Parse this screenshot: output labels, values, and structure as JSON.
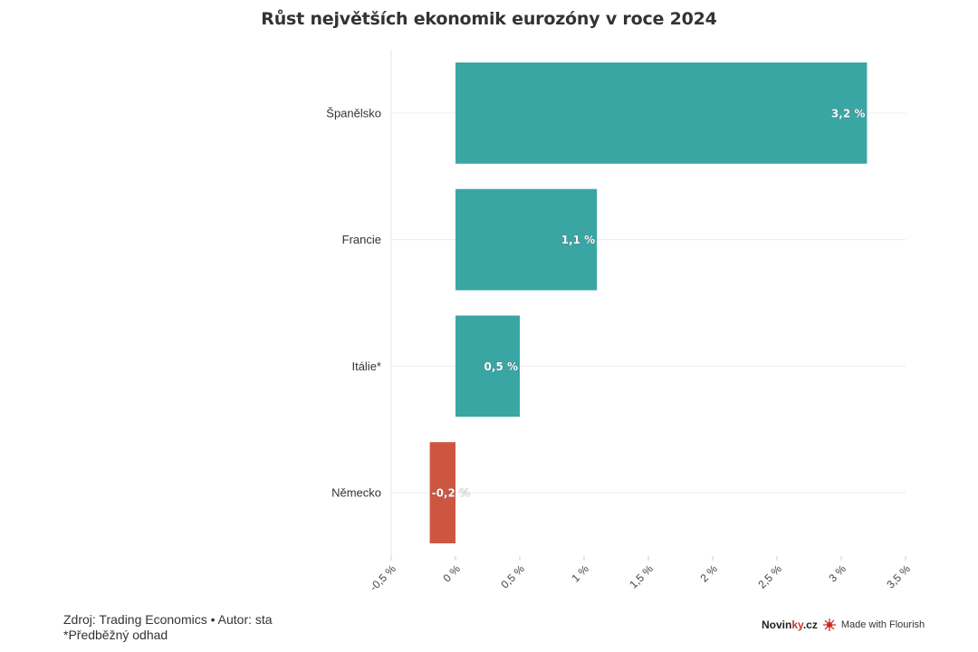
{
  "chart_data": {
    "type": "bar",
    "orientation": "horizontal",
    "title": "Růst největších ekonomik eurozóny v roce 2024",
    "categories": [
      "Španělsko",
      "Francie",
      "Itálie*",
      "Německo"
    ],
    "values": [
      3.2,
      1.1,
      0.5,
      -0.2
    ],
    "value_labels": [
      "3,2 %",
      "1,1 %",
      "0,5 %",
      "-0,2 %"
    ],
    "xlim": [
      -0.5,
      3.5
    ],
    "xticks": [
      -0.5,
      0,
      0.5,
      1,
      1.5,
      2,
      2.5,
      3,
      3.5
    ],
    "xtick_labels": [
      "-0,5 %",
      "0 %",
      "0,5 %",
      "1 %",
      "1,5 %",
      "2 %",
      "2,5 %",
      "3 %",
      "3,5 %"
    ],
    "grid": true,
    "colors": {
      "positive": "#3aa6a4",
      "negative": "#cd5641"
    }
  },
  "footer": {
    "source": "Zdroj: Trading Economics • Autor: sta",
    "note": "*Předběžný odhad",
    "brand_novinky_main": "Novin",
    "brand_novinky_accent": "ky",
    "brand_novinky_tld": ".cz",
    "flourish": "Made with Flourish"
  }
}
